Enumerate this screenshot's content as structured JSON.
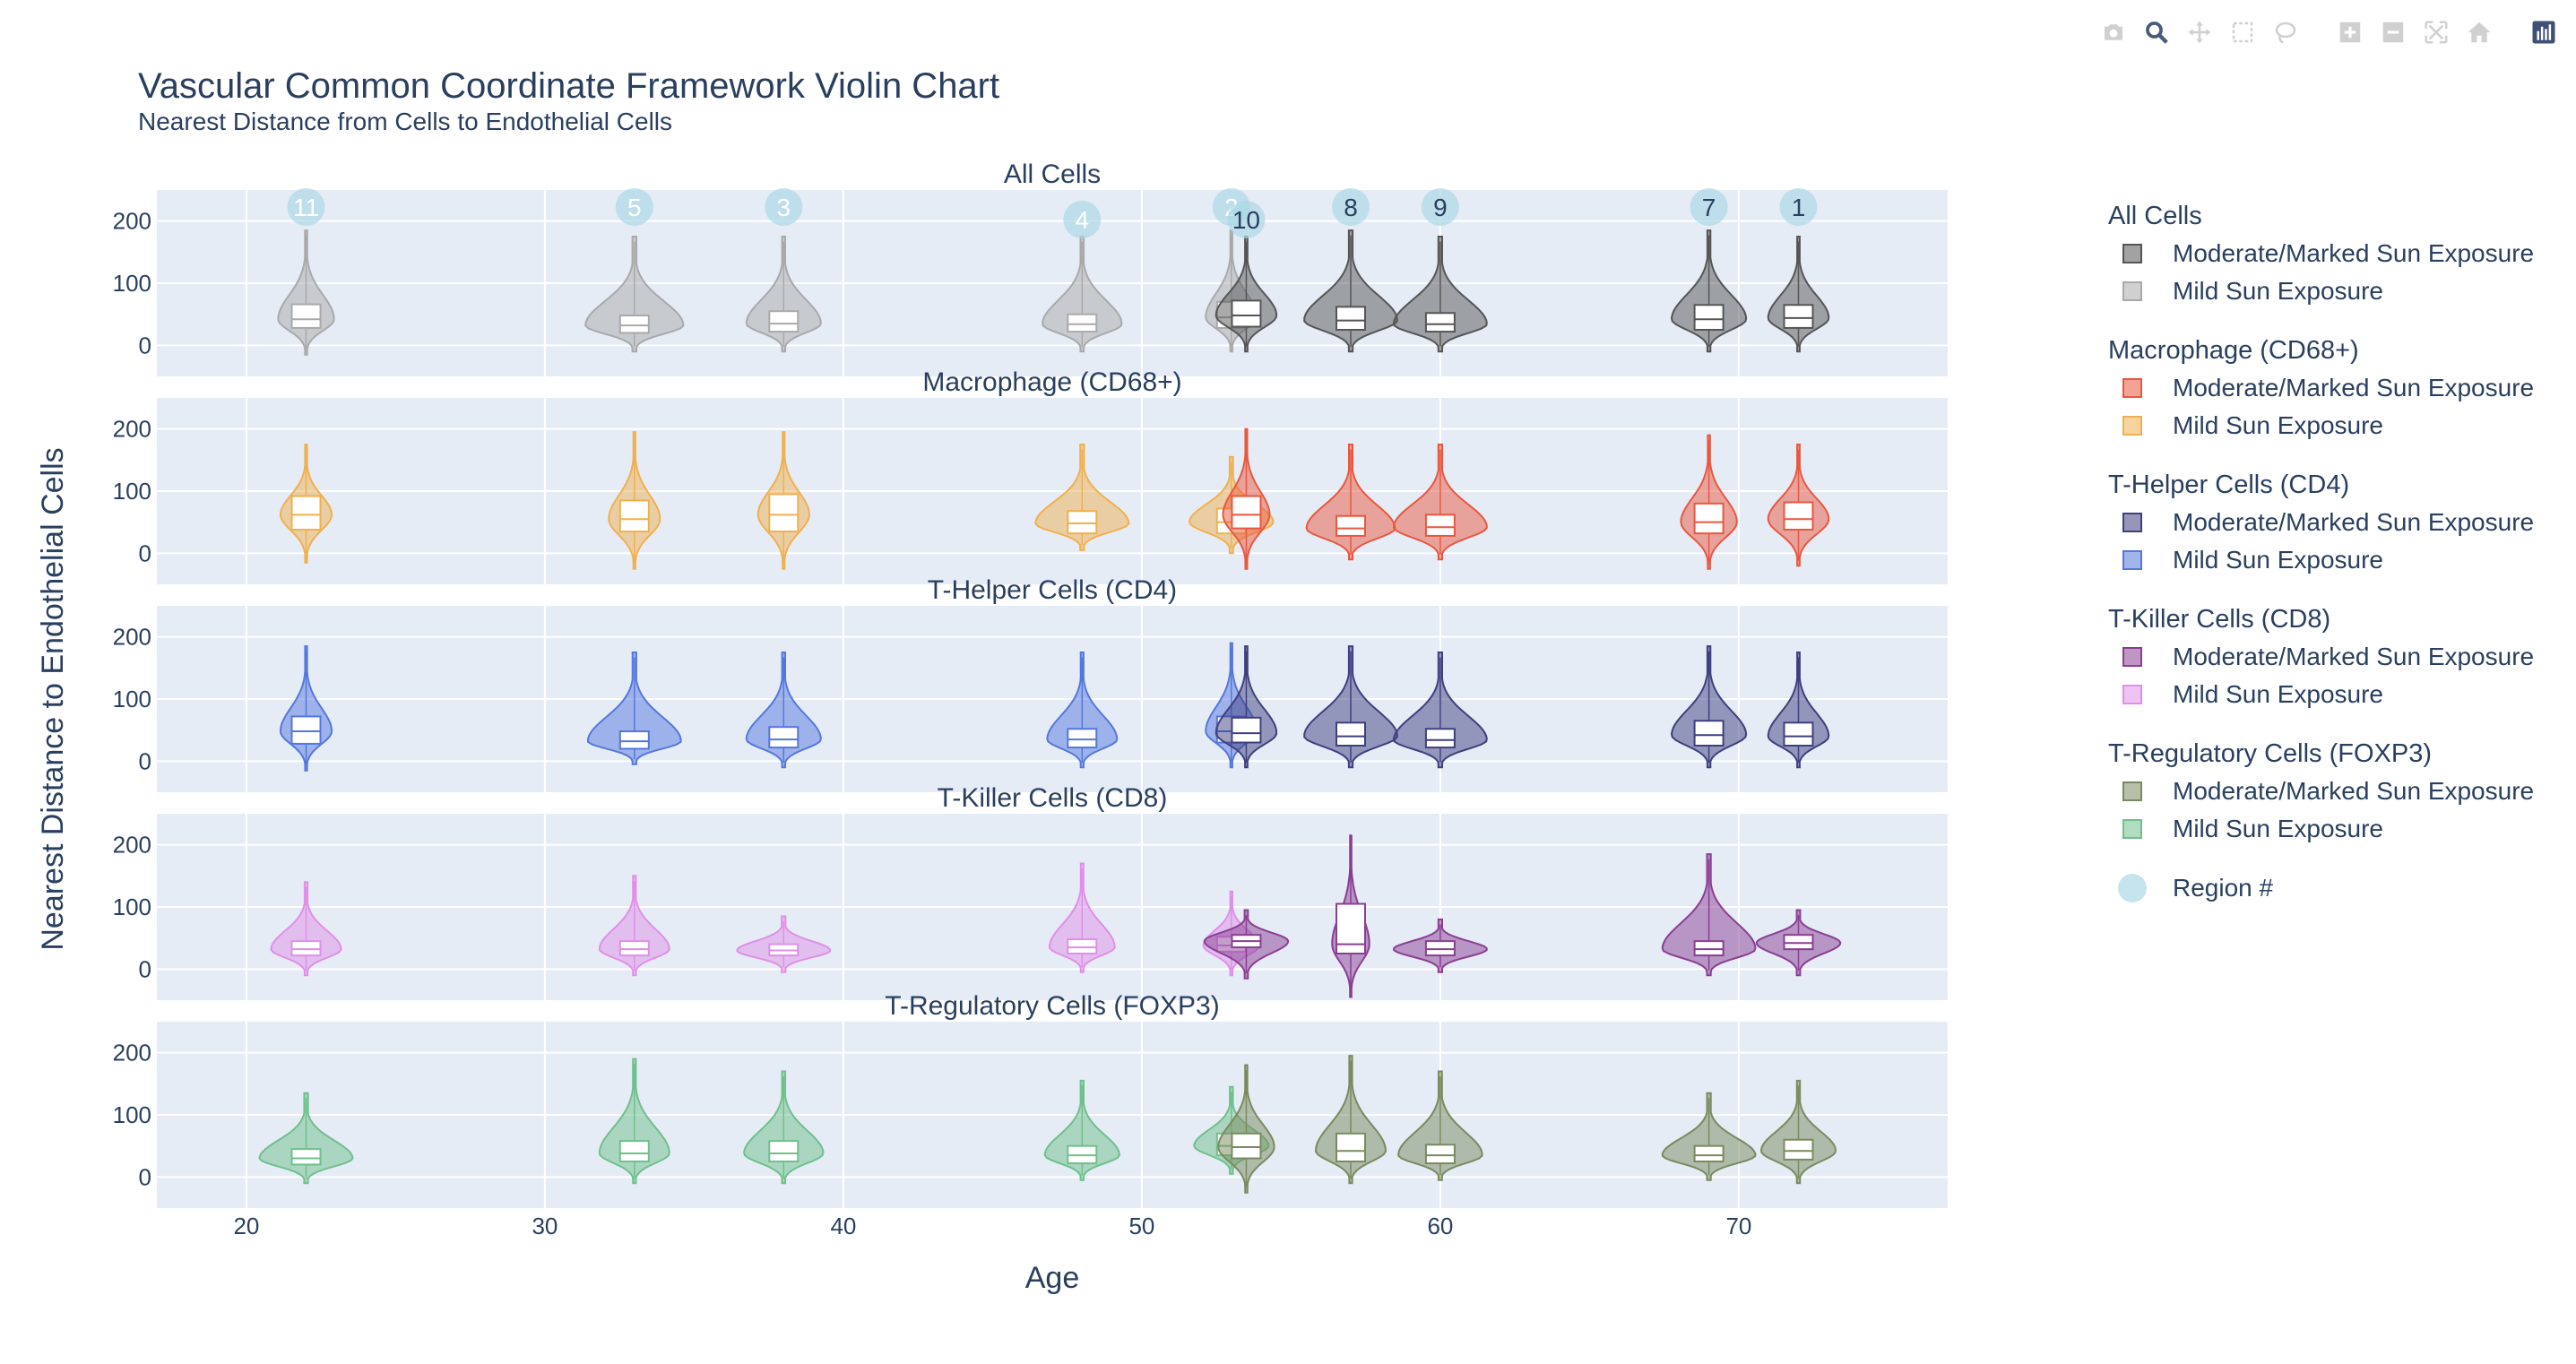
{
  "title": "Vascular Common Coordinate Framework Violin Chart",
  "subtitle": "Nearest Distance from Cells to Endothelial Cells",
  "modebar": [
    {
      "icon": "camera-icon"
    },
    {
      "icon": "zoom-icon"
    },
    {
      "icon": "pan-icon"
    },
    {
      "icon": "box-select-icon"
    },
    {
      "icon": "lasso-icon"
    },
    {
      "icon": "zoom-in-icon"
    },
    {
      "icon": "zoom-out-icon"
    },
    {
      "icon": "autoscale-icon"
    },
    {
      "icon": "home-icon"
    },
    {
      "icon": "plotly-logo-icon"
    }
  ],
  "legend": {
    "groups": [
      {
        "title": "All Cells",
        "items": [
          {
            "label": "Moderate/Marked Sun Exposure",
            "color": "#555555"
          },
          {
            "label": "Mild Sun Exposure",
            "color": "#a9a9a9"
          }
        ]
      },
      {
        "title": "Macrophage (CD68+)",
        "items": [
          {
            "label": "Moderate/Marked Sun Exposure",
            "color": "#e9573f"
          },
          {
            "label": "Mild Sun Exposure",
            "color": "#f0b04f"
          }
        ]
      },
      {
        "title": "T-Helper Cells (CD4)",
        "items": [
          {
            "label": "Moderate/Marked Sun Exposure",
            "color": "#3f3f7f"
          },
          {
            "label": "Mild Sun Exposure",
            "color": "#5577dd"
          }
        ]
      },
      {
        "title": "T-Killer Cells (CD8)",
        "items": [
          {
            "label": "Moderate/Marked Sun Exposure",
            "color": "#8a3e93"
          },
          {
            "label": "Mild Sun Exposure",
            "color": "#e08fe8"
          }
        ]
      },
      {
        "title": "T-Regulatory Cells (FOXP3)",
        "items": [
          {
            "label": "Moderate/Marked Sun Exposure",
            "color": "#7a8a5e"
          },
          {
            "label": "Mild Sun Exposure",
            "color": "#6fc08c"
          }
        ]
      }
    ],
    "region_label": "Region #",
    "region_color": "#add8e6"
  },
  "chart_data": {
    "type": "violin",
    "xlabel": "Age",
    "ylabel": "Nearest Distance to Endothelial Cells",
    "xlim": [
      17,
      77
    ],
    "xticks": [
      20,
      30,
      40,
      50,
      60,
      70
    ],
    "ylim": [
      -50,
      250
    ],
    "yticks": [
      0,
      100,
      200
    ],
    "grid": true,
    "regions": [
      {
        "label": "11",
        "age": 22,
        "exposure": "mild"
      },
      {
        "label": "5",
        "age": 33,
        "exposure": "mild"
      },
      {
        "label": "3",
        "age": 38,
        "exposure": "mild"
      },
      {
        "label": "4",
        "age": 48,
        "exposure": "mild"
      },
      {
        "label": "2",
        "age": 53,
        "exposure": "mild"
      },
      {
        "label": "10",
        "age": 53.5,
        "exposure": "moderate"
      },
      {
        "label": "8",
        "age": 57,
        "exposure": "moderate"
      },
      {
        "label": "9",
        "age": 60,
        "exposure": "moderate"
      },
      {
        "label": "7",
        "age": 69,
        "exposure": "moderate"
      },
      {
        "label": "1",
        "age": 72,
        "exposure": "moderate"
      }
    ],
    "panels": [
      {
        "name": "All Cells",
        "mild": "#a9a9a9",
        "moderate": "#555555",
        "violins": [
          {
            "x": 22,
            "e": "mild",
            "lo": -15,
            "hi": 185,
            "q1": 28,
            "med": 42,
            "q3": 66,
            "w": 1.2
          },
          {
            "x": 33,
            "e": "mild",
            "lo": -10,
            "hi": 175,
            "q1": 20,
            "med": 32,
            "q3": 48,
            "w": 2.1
          },
          {
            "x": 38,
            "e": "mild",
            "lo": -10,
            "hi": 175,
            "q1": 22,
            "med": 35,
            "q3": 55,
            "w": 1.6
          },
          {
            "x": 48,
            "e": "mild",
            "lo": -10,
            "hi": 175,
            "q1": 22,
            "med": 34,
            "q3": 50,
            "w": 1.7
          },
          {
            "x": 53,
            "e": "mild",
            "lo": -10,
            "hi": 185,
            "q1": 28,
            "med": 45,
            "q3": 70,
            "w": 1.1
          },
          {
            "x": 53.5,
            "e": "moderate",
            "lo": -10,
            "hi": 175,
            "q1": 30,
            "med": 48,
            "q3": 72,
            "w": 1.3
          },
          {
            "x": 57,
            "e": "moderate",
            "lo": -10,
            "hi": 185,
            "q1": 25,
            "med": 40,
            "q3": 62,
            "w": 2.0
          },
          {
            "x": 60,
            "e": "moderate",
            "lo": -10,
            "hi": 175,
            "q1": 22,
            "med": 34,
            "q3": 52,
            "w": 2.0
          },
          {
            "x": 69,
            "e": "moderate",
            "lo": -10,
            "hi": 185,
            "q1": 25,
            "med": 42,
            "q3": 65,
            "w": 1.6
          },
          {
            "x": 72,
            "e": "moderate",
            "lo": -10,
            "hi": 175,
            "q1": 28,
            "med": 44,
            "q3": 65,
            "w": 1.3
          }
        ]
      },
      {
        "name": "Macrophage (CD68+)",
        "mild": "#f0b04f",
        "moderate": "#e9573f",
        "violins": [
          {
            "x": 22,
            "e": "mild",
            "lo": -15,
            "hi": 175,
            "q1": 38,
            "med": 62,
            "q3": 92,
            "w": 1.1
          },
          {
            "x": 33,
            "e": "mild",
            "lo": -25,
            "hi": 195,
            "q1": 35,
            "med": 55,
            "q3": 85,
            "w": 1.1
          },
          {
            "x": 38,
            "e": "mild",
            "lo": -25,
            "hi": 195,
            "q1": 35,
            "med": 62,
            "q3": 95,
            "w": 1.1
          },
          {
            "x": 48,
            "e": "mild",
            "lo": 5,
            "hi": 175,
            "q1": 32,
            "med": 48,
            "q3": 68,
            "w": 2.0
          },
          {
            "x": 53,
            "e": "mild",
            "lo": 0,
            "hi": 155,
            "q1": 32,
            "med": 50,
            "q3": 72,
            "w": 1.8
          },
          {
            "x": 53.5,
            "e": "moderate",
            "lo": -25,
            "hi": 200,
            "q1": 40,
            "med": 62,
            "q3": 92,
            "w": 1.0
          },
          {
            "x": 57,
            "e": "moderate",
            "lo": -10,
            "hi": 175,
            "q1": 28,
            "med": 40,
            "q3": 60,
            "w": 1.9
          },
          {
            "x": 60,
            "e": "moderate",
            "lo": -10,
            "hi": 175,
            "q1": 28,
            "med": 42,
            "q3": 62,
            "w": 2.0
          },
          {
            "x": 69,
            "e": "moderate",
            "lo": -25,
            "hi": 190,
            "q1": 32,
            "med": 50,
            "q3": 80,
            "w": 1.2
          },
          {
            "x": 72,
            "e": "moderate",
            "lo": -20,
            "hi": 175,
            "q1": 38,
            "med": 55,
            "q3": 82,
            "w": 1.3
          }
        ]
      },
      {
        "name": "T-Helper Cells (CD4)",
        "mild": "#5577dd",
        "moderate": "#3f3f7f",
        "violins": [
          {
            "x": 22,
            "e": "mild",
            "lo": -15,
            "hi": 185,
            "q1": 28,
            "med": 48,
            "q3": 72,
            "w": 1.1
          },
          {
            "x": 33,
            "e": "mild",
            "lo": -5,
            "hi": 175,
            "q1": 20,
            "med": 32,
            "q3": 48,
            "w": 2.0
          },
          {
            "x": 38,
            "e": "mild",
            "lo": -10,
            "hi": 175,
            "q1": 22,
            "med": 35,
            "q3": 55,
            "w": 1.6
          },
          {
            "x": 48,
            "e": "mild",
            "lo": -10,
            "hi": 175,
            "q1": 22,
            "med": 35,
            "q3": 52,
            "w": 1.5
          },
          {
            "x": 53,
            "e": "mild",
            "lo": -10,
            "hi": 190,
            "q1": 30,
            "med": 48,
            "q3": 72,
            "w": 1.1
          },
          {
            "x": 53.5,
            "e": "moderate",
            "lo": -10,
            "hi": 185,
            "q1": 30,
            "med": 45,
            "q3": 70,
            "w": 1.3
          },
          {
            "x": 57,
            "e": "moderate",
            "lo": -10,
            "hi": 185,
            "q1": 25,
            "med": 40,
            "q3": 62,
            "w": 2.0
          },
          {
            "x": 60,
            "e": "moderate",
            "lo": -10,
            "hi": 175,
            "q1": 22,
            "med": 34,
            "q3": 52,
            "w": 2.0
          },
          {
            "x": 69,
            "e": "moderate",
            "lo": -10,
            "hi": 185,
            "q1": 25,
            "med": 42,
            "q3": 65,
            "w": 1.6
          },
          {
            "x": 72,
            "e": "moderate",
            "lo": -10,
            "hi": 175,
            "q1": 25,
            "med": 40,
            "q3": 62,
            "w": 1.3
          }
        ]
      },
      {
        "name": "T-Killer Cells (CD8)",
        "mild": "#e08fe8",
        "moderate": "#8a3e93",
        "violins": [
          {
            "x": 22,
            "e": "mild",
            "lo": -10,
            "hi": 140,
            "q1": 22,
            "med": 32,
            "q3": 45,
            "w": 1.5
          },
          {
            "x": 33,
            "e": "mild",
            "lo": -10,
            "hi": 150,
            "q1": 22,
            "med": 32,
            "q3": 45,
            "w": 1.5
          },
          {
            "x": 38,
            "e": "mild",
            "lo": -5,
            "hi": 85,
            "q1": 22,
            "med": 30,
            "q3": 40,
            "w": 2.0
          },
          {
            "x": 48,
            "e": "mild",
            "lo": -5,
            "hi": 170,
            "q1": 25,
            "med": 35,
            "q3": 48,
            "w": 1.4
          },
          {
            "x": 53,
            "e": "mild",
            "lo": -10,
            "hi": 125,
            "q1": 28,
            "med": 38,
            "q3": 52,
            "w": 1.2
          },
          {
            "x": 53.5,
            "e": "moderate",
            "lo": -15,
            "hi": 95,
            "q1": 35,
            "med": 45,
            "q3": 55,
            "w": 1.8
          },
          {
            "x": 57,
            "e": "moderate",
            "lo": -45,
            "hi": 215,
            "q1": 25,
            "med": 40,
            "q3": 105,
            "w": 0.8
          },
          {
            "x": 60,
            "e": "moderate",
            "lo": -5,
            "hi": 80,
            "q1": 22,
            "med": 32,
            "q3": 45,
            "w": 2.0
          },
          {
            "x": 69,
            "e": "moderate",
            "lo": -10,
            "hi": 185,
            "q1": 22,
            "med": 32,
            "q3": 45,
            "w": 2.0
          },
          {
            "x": 72,
            "e": "moderate",
            "lo": -10,
            "hi": 95,
            "q1": 32,
            "med": 42,
            "q3": 55,
            "w": 1.8
          }
        ]
      },
      {
        "name": "T-Regulatory Cells (FOXP3)",
        "mild": "#6fc08c",
        "moderate": "#7a8a5e",
        "violins": [
          {
            "x": 22,
            "e": "mild",
            "lo": -10,
            "hi": 135,
            "q1": 20,
            "med": 30,
            "q3": 45,
            "w": 2.0
          },
          {
            "x": 33,
            "e": "mild",
            "lo": -10,
            "hi": 190,
            "q1": 25,
            "med": 38,
            "q3": 58,
            "w": 1.5
          },
          {
            "x": 38,
            "e": "mild",
            "lo": -10,
            "hi": 170,
            "q1": 25,
            "med": 38,
            "q3": 58,
            "w": 1.7
          },
          {
            "x": 48,
            "e": "mild",
            "lo": -5,
            "hi": 155,
            "q1": 22,
            "med": 35,
            "q3": 50,
            "w": 1.6
          },
          {
            "x": 53,
            "e": "mild",
            "lo": 5,
            "hi": 145,
            "q1": 35,
            "med": 50,
            "q3": 70,
            "w": 1.6
          },
          {
            "x": 53.5,
            "e": "moderate",
            "lo": -25,
            "hi": 180,
            "q1": 30,
            "med": 48,
            "q3": 70,
            "w": 1.2
          },
          {
            "x": 57,
            "e": "moderate",
            "lo": -10,
            "hi": 195,
            "q1": 25,
            "med": 42,
            "q3": 70,
            "w": 1.5
          },
          {
            "x": 60,
            "e": "moderate",
            "lo": -5,
            "hi": 170,
            "q1": 22,
            "med": 35,
            "q3": 52,
            "w": 1.8
          },
          {
            "x": 69,
            "e": "moderate",
            "lo": -5,
            "hi": 135,
            "q1": 25,
            "med": 35,
            "q3": 50,
            "w": 2.0
          },
          {
            "x": 72,
            "e": "moderate",
            "lo": -10,
            "hi": 155,
            "q1": 28,
            "med": 42,
            "q3": 60,
            "w": 1.6
          }
        ]
      }
    ]
  }
}
